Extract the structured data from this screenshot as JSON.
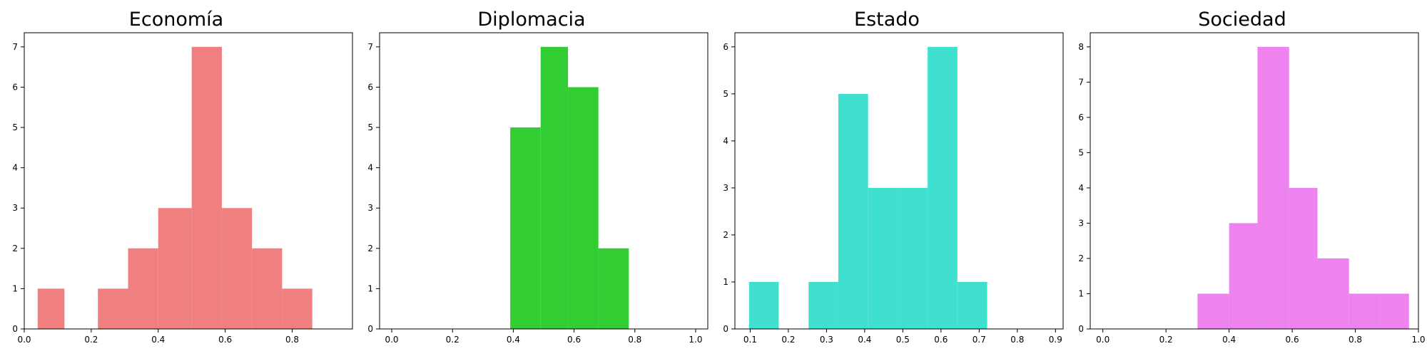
{
  "chart_data": [
    {
      "type": "bar",
      "title": "Economía",
      "xlabel": "",
      "ylabel": "",
      "color": "#f08080",
      "xlim": [
        0.0,
        0.98
      ],
      "ylim": [
        0,
        7.35
      ],
      "xticks": [
        {
          "value": 0.0,
          "label": "0.0"
        },
        {
          "value": 0.2,
          "label": "0.2"
        },
        {
          "value": 0.4,
          "label": "0.4"
        },
        {
          "value": 0.6,
          "label": "0.6"
        },
        {
          "value": 0.8,
          "label": "0.8"
        }
      ],
      "yticks": [
        {
          "value": 0,
          "label": "0"
        },
        {
          "value": 1,
          "label": "1"
        },
        {
          "value": 2,
          "label": "2"
        },
        {
          "value": 3,
          "label": "3"
        },
        {
          "value": 4,
          "label": "4"
        },
        {
          "value": 5,
          "label": "5"
        },
        {
          "value": 6,
          "label": "6"
        },
        {
          "value": 7,
          "label": "7"
        }
      ],
      "bins": [
        {
          "x0": 0.04,
          "x1": 0.12,
          "count": 1
        },
        {
          "x0": 0.12,
          "x1": 0.22,
          "count": 0
        },
        {
          "x0": 0.22,
          "x1": 0.31,
          "count": 1
        },
        {
          "x0": 0.31,
          "x1": 0.4,
          "count": 2
        },
        {
          "x0": 0.4,
          "x1": 0.5,
          "count": 3
        },
        {
          "x0": 0.5,
          "x1": 0.59,
          "count": 7
        },
        {
          "x0": 0.59,
          "x1": 0.68,
          "count": 3
        },
        {
          "x0": 0.68,
          "x1": 0.77,
          "count": 2
        },
        {
          "x0": 0.77,
          "x1": 0.86,
          "count": 1
        }
      ]
    },
    {
      "type": "bar",
      "title": "Diplomacia",
      "xlabel": "",
      "ylabel": "",
      "color": "#32cd32",
      "xlim": [
        -0.04,
        1.04
      ],
      "ylim": [
        0,
        7.35
      ],
      "xticks": [
        {
          "value": 0.0,
          "label": "0.0"
        },
        {
          "value": 0.2,
          "label": "0.2"
        },
        {
          "value": 0.4,
          "label": "0.4"
        },
        {
          "value": 0.6,
          "label": "0.6"
        },
        {
          "value": 0.8,
          "label": "0.8"
        },
        {
          "value": 1.0,
          "label": "1.0"
        }
      ],
      "yticks": [
        {
          "value": 0,
          "label": "0"
        },
        {
          "value": 1,
          "label": "1"
        },
        {
          "value": 2,
          "label": "2"
        },
        {
          "value": 3,
          "label": "3"
        },
        {
          "value": 4,
          "label": "4"
        },
        {
          "value": 5,
          "label": "5"
        },
        {
          "value": 6,
          "label": "6"
        },
        {
          "value": 7,
          "label": "7"
        }
      ],
      "bins": [
        {
          "x0": 0.39,
          "x1": 0.49,
          "count": 5
        },
        {
          "x0": 0.49,
          "x1": 0.58,
          "count": 7
        },
        {
          "x0": 0.58,
          "x1": 0.68,
          "count": 6
        },
        {
          "x0": 0.68,
          "x1": 0.78,
          "count": 2
        }
      ]
    },
    {
      "type": "bar",
      "title": "Estado",
      "xlabel": "",
      "ylabel": "",
      "color": "#40e0d0",
      "xlim": [
        0.06,
        0.92
      ],
      "ylim": [
        0,
        6.3
      ],
      "xticks": [
        {
          "value": 0.1,
          "label": "0.1"
        },
        {
          "value": 0.2,
          "label": "0.2"
        },
        {
          "value": 0.3,
          "label": "0.3"
        },
        {
          "value": 0.4,
          "label": "0.4"
        },
        {
          "value": 0.5,
          "label": "0.5"
        },
        {
          "value": 0.6,
          "label": "0.6"
        },
        {
          "value": 0.7,
          "label": "0.7"
        },
        {
          "value": 0.8,
          "label": "0.8"
        },
        {
          "value": 0.9,
          "label": "0.9"
        }
      ],
      "yticks": [
        {
          "value": 0,
          "label": "0"
        },
        {
          "value": 1,
          "label": "1"
        },
        {
          "value": 2,
          "label": "2"
        },
        {
          "value": 3,
          "label": "3"
        },
        {
          "value": 4,
          "label": "4"
        },
        {
          "value": 5,
          "label": "5"
        },
        {
          "value": 6,
          "label": "6"
        }
      ],
      "bins": [
        {
          "x0": 0.097,
          "x1": 0.175,
          "count": 1
        },
        {
          "x0": 0.175,
          "x1": 0.253,
          "count": 0
        },
        {
          "x0": 0.253,
          "x1": 0.331,
          "count": 1
        },
        {
          "x0": 0.331,
          "x1": 0.409,
          "count": 5
        },
        {
          "x0": 0.409,
          "x1": 0.487,
          "count": 3
        },
        {
          "x0": 0.487,
          "x1": 0.565,
          "count": 3
        },
        {
          "x0": 0.565,
          "x1": 0.643,
          "count": 6
        },
        {
          "x0": 0.643,
          "x1": 0.721,
          "count": 1
        }
      ]
    },
    {
      "type": "bar",
      "title": "Sociedad",
      "xlabel": "",
      "ylabel": "",
      "color": "#ee82ee",
      "xlim": [
        -0.04,
        1.0
      ],
      "ylim": [
        0,
        8.4
      ],
      "xticks": [
        {
          "value": 0.0,
          "label": "0.0"
        },
        {
          "value": 0.2,
          "label": "0.2"
        },
        {
          "value": 0.4,
          "label": "0.4"
        },
        {
          "value": 0.6,
          "label": "0.6"
        },
        {
          "value": 0.8,
          "label": "0.8"
        },
        {
          "value": 1.0,
          "label": "1.0"
        }
      ],
      "yticks": [
        {
          "value": 0,
          "label": "0"
        },
        {
          "value": 1,
          "label": "1"
        },
        {
          "value": 2,
          "label": "2"
        },
        {
          "value": 3,
          "label": "3"
        },
        {
          "value": 4,
          "label": "4"
        },
        {
          "value": 5,
          "label": "5"
        },
        {
          "value": 6,
          "label": "6"
        },
        {
          "value": 7,
          "label": "7"
        },
        {
          "value": 8,
          "label": "8"
        }
      ],
      "bins": [
        {
          "x0": 0.3,
          "x1": 0.4,
          "count": 1
        },
        {
          "x0": 0.4,
          "x1": 0.49,
          "count": 3
        },
        {
          "x0": 0.49,
          "x1": 0.59,
          "count": 8
        },
        {
          "x0": 0.59,
          "x1": 0.68,
          "count": 4
        },
        {
          "x0": 0.68,
          "x1": 0.78,
          "count": 2
        },
        {
          "x0": 0.78,
          "x1": 0.88,
          "count": 1
        },
        {
          "x0": 0.88,
          "x1": 0.97,
          "count": 1
        }
      ]
    }
  ]
}
